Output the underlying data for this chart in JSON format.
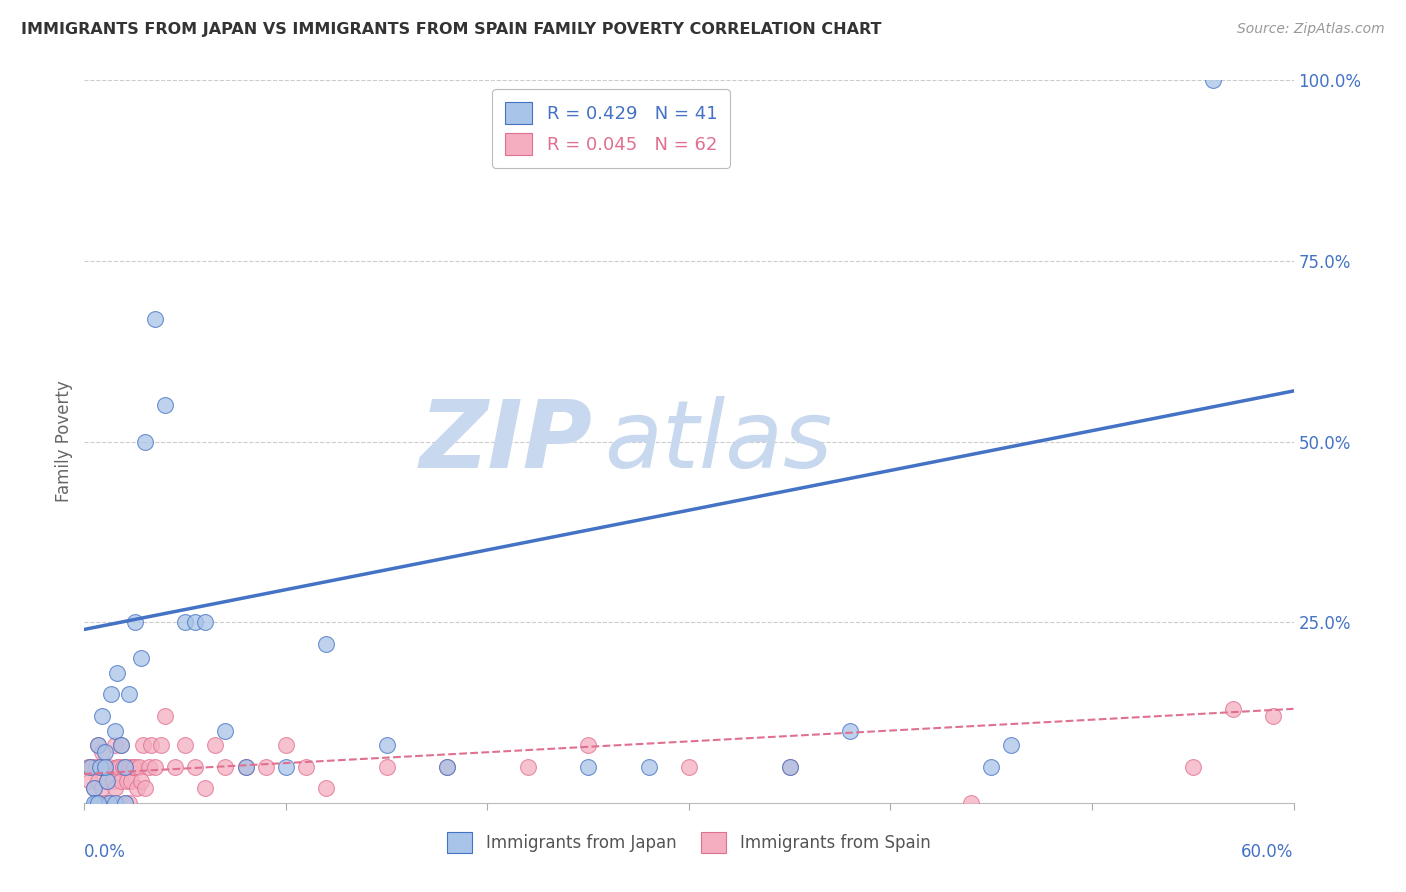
{
  "title": "IMMIGRANTS FROM JAPAN VS IMMIGRANTS FROM SPAIN FAMILY POVERTY CORRELATION CHART",
  "source": "Source: ZipAtlas.com",
  "ylabel": "Family Poverty",
  "japan_R": 0.429,
  "japan_N": 41,
  "spain_R": 0.045,
  "spain_N": 62,
  "japan_color": "#a8c4e8",
  "japan_line_color": "#4472c4",
  "spain_color": "#f4aec0",
  "spain_line_color": "#e07090",
  "background_color": "#ffffff",
  "grid_color": "#cccccc",
  "watermark_zip_color": "#c8d8ee",
  "watermark_atlas_color": "#c8d8ee",
  "japan_x": [
    0.003,
    0.005,
    0.006,
    0.007,
    0.008,
    0.009,
    0.01,
    0.011,
    0.012,
    0.013,
    0.015,
    0.016,
    0.018,
    0.02,
    0.022,
    0.025,
    0.028,
    0.03,
    0.035,
    0.04,
    0.05,
    0.055,
    0.06,
    0.07,
    0.08,
    0.1,
    0.12,
    0.15,
    0.18,
    0.25,
    0.28,
    0.35,
    0.38,
    0.45,
    0.46,
    0.56,
    0.005,
    0.007,
    0.01,
    0.015,
    0.02
  ],
  "japan_y": [
    0.05,
    0.02,
    0.0,
    0.08,
    0.05,
    0.12,
    0.07,
    0.03,
    0.0,
    0.15,
    0.1,
    0.18,
    0.08,
    0.05,
    0.15,
    0.25,
    0.2,
    0.5,
    0.67,
    0.55,
    0.25,
    0.25,
    0.25,
    0.1,
    0.05,
    0.05,
    0.22,
    0.08,
    0.05,
    0.05,
    0.05,
    0.05,
    0.1,
    0.05,
    0.08,
    1.0,
    0.0,
    0.0,
    0.05,
    0.0,
    0.0
  ],
  "spain_x": [
    0.002,
    0.003,
    0.004,
    0.005,
    0.006,
    0.007,
    0.007,
    0.008,
    0.008,
    0.009,
    0.009,
    0.01,
    0.01,
    0.011,
    0.012,
    0.013,
    0.014,
    0.015,
    0.015,
    0.016,
    0.017,
    0.018,
    0.018,
    0.019,
    0.02,
    0.021,
    0.022,
    0.022,
    0.023,
    0.024,
    0.025,
    0.026,
    0.027,
    0.028,
    0.029,
    0.03,
    0.032,
    0.033,
    0.035,
    0.038,
    0.04,
    0.045,
    0.05,
    0.055,
    0.06,
    0.065,
    0.07,
    0.08,
    0.09,
    0.1,
    0.11,
    0.12,
    0.15,
    0.18,
    0.22,
    0.25,
    0.3,
    0.35,
    0.44,
    0.55,
    0.57,
    0.59
  ],
  "spain_y": [
    0.05,
    0.03,
    0.05,
    0.02,
    0.05,
    0.03,
    0.08,
    0.0,
    0.05,
    0.02,
    0.07,
    0.05,
    0.0,
    0.03,
    0.05,
    0.0,
    0.03,
    0.02,
    0.08,
    0.05,
    0.05,
    0.03,
    0.08,
    0.05,
    0.0,
    0.03,
    0.0,
    0.05,
    0.03,
    0.05,
    0.05,
    0.02,
    0.05,
    0.03,
    0.08,
    0.02,
    0.05,
    0.08,
    0.05,
    0.08,
    0.12,
    0.05,
    0.08,
    0.05,
    0.02,
    0.08,
    0.05,
    0.05,
    0.05,
    0.08,
    0.05,
    0.02,
    0.05,
    0.05,
    0.05,
    0.08,
    0.05,
    0.05,
    0.0,
    0.05,
    0.13,
    0.12
  ],
  "japan_line_x0": 0.0,
  "japan_line_x1": 0.6,
  "japan_line_y0": 0.24,
  "japan_line_y1": 0.57,
  "spain_line_x0": 0.0,
  "spain_line_x1": 0.6,
  "spain_line_y0": 0.04,
  "spain_line_y1": 0.13,
  "xlim": [
    0.0,
    0.6
  ],
  "ylim": [
    0.0,
    1.0
  ],
  "yticks": [
    0.25,
    0.5,
    0.75,
    1.0
  ],
  "ytick_labels": [
    "25.0%",
    "50.0%",
    "75.0%",
    "100.0%"
  ],
  "xticks": [
    0.0,
    0.1,
    0.2,
    0.3,
    0.4,
    0.5,
    0.6
  ]
}
